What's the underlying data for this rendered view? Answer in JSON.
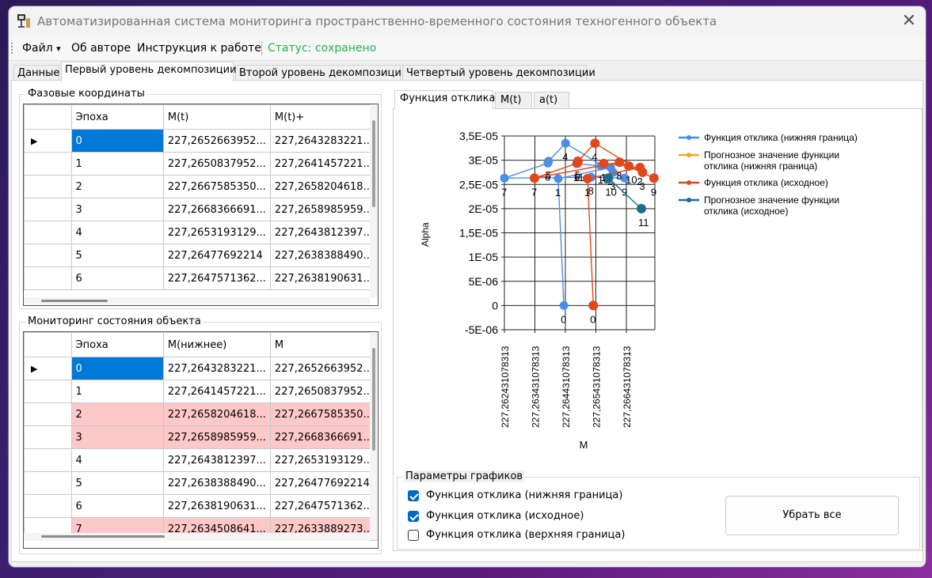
{
  "window": {
    "title": "Автоматизированная система мониторинга пространственно-временного состояния техногенного объекта",
    "close_glyph": "✕"
  },
  "menu": {
    "file": "Файл",
    "file_arrow": "▾",
    "about": "Об авторе",
    "instructions": "Инструкция к работе",
    "status": "Статус: сохранено",
    "status_color": "#22b14c"
  },
  "tabs": [
    "Данные",
    "Первый уровень декомпозиции",
    "Второй уровень декомпозиции",
    "Четвертый уровень декомпозиции"
  ],
  "active_tab": 1,
  "phase_coords": {
    "title": "Фазовые координаты",
    "columns": [
      "Эпоха",
      "M(t)",
      "M(t)+"
    ],
    "current_row_marker": "▶",
    "rows": [
      [
        "0",
        "227,2652663952...",
        "227,2643283221..."
      ],
      [
        "1",
        "227,2650837952...",
        "227,2641457221..."
      ],
      [
        "2",
        "227,2667585350...",
        "227,2658204618..."
      ],
      [
        "3",
        "227,2668366691...",
        "227,2658985959..."
      ],
      [
        "4",
        "227,2653193129...",
        "227,2643812397..."
      ],
      [
        "5",
        "227,26477692214",
        "227,2638388490..."
      ],
      [
        "6",
        "227,2647571362...",
        "227,2638190631..."
      ]
    ]
  },
  "monitoring": {
    "title": "Мониторинг состояния объекта",
    "columns": [
      "Эпоха",
      "M(нижнее)",
      "M"
    ],
    "current_row_marker": "▶",
    "alarm_color": "#ffc8c8",
    "rows": [
      {
        "cells": [
          "0",
          "227,2643283221...",
          "227,2652663952..."
        ],
        "alarm": false
      },
      {
        "cells": [
          "1",
          "227,2641457221...",
          "227,2650837952..."
        ],
        "alarm": false
      },
      {
        "cells": [
          "2",
          "227,2658204618...",
          "227,2667585350..."
        ],
        "alarm": true
      },
      {
        "cells": [
          "3",
          "227,2658985959...",
          "227,2668366691..."
        ],
        "alarm": true
      },
      {
        "cells": [
          "4",
          "227,2643812397...",
          "227,2653193129..."
        ],
        "alarm": false
      },
      {
        "cells": [
          "5",
          "227,2638388490...",
          "227,26477692214"
        ],
        "alarm": false
      },
      {
        "cells": [
          "6",
          "227,2638190631...",
          "227,2647571362..."
        ],
        "alarm": false
      },
      {
        "cells": [
          "7",
          "227,2634508641...",
          "227,2633889273..."
        ],
        "alarm": true
      }
    ]
  },
  "chart_tabs": [
    "Функция отклика",
    "M(t)",
    "a(t)"
  ],
  "active_chart_tab": 0,
  "chart_data": {
    "type": "scatter",
    "xlabel": "M",
    "ylabel": "Alpha",
    "x_ticks": [
      "227,262431078313",
      "227,263431078313",
      "227,264431078313",
      "227,265431078313",
      "227,266431078313"
    ],
    "x_range": [
      227.26243,
      227.26723
    ],
    "y_ticks": [
      "3,5E-05",
      "3E-05",
      "2,5E-05",
      "2E-05",
      "1,5E-05",
      "1E-05",
      "5E-06",
      "0",
      "-5E-06"
    ],
    "y_range": [
      -5e-06,
      3.5e-05
    ],
    "grid": true,
    "legend_position": "right",
    "series": [
      {
        "name": "Функция отклика (нижняя граница)",
        "color": "#4a8ee6",
        "points": [
          {
            "x": 227.2643283,
            "y": 0.0,
            "label": "0"
          },
          {
            "x": 227.2641457,
            "y": 2.62e-05,
            "label": "1"
          },
          {
            "x": 227.2658205,
            "y": 2.85e-05,
            "label": "2"
          },
          {
            "x": 227.2658986,
            "y": 2.75e-05,
            "label": "3"
          },
          {
            "x": 227.2643812,
            "y": 3.35e-05,
            "label": "4"
          },
          {
            "x": 227.2638388,
            "y": 2.98e-05,
            "label": "5"
          },
          {
            "x": 227.2638191,
            "y": 2.94e-05,
            "label": "6"
          },
          {
            "x": 227.26243,
            "y": 2.63e-05,
            "label": "7"
          },
          {
            "x": 227.2652,
            "y": 2.65e-05,
            "label": "8"
          },
          {
            "x": 227.26627,
            "y": 2.63e-05,
            "label": "9"
          },
          {
            "x": 227.26551,
            "y": 2.88e-05,
            "label": "10"
          },
          {
            "x": 227.26473,
            "y": 2.93e-05,
            "label": "11"
          }
        ]
      },
      {
        "name": "Прогнозное значение функции отклика (нижняя граница)",
        "color": "#f5a623",
        "points": []
      },
      {
        "name": "Функция отклика (исходное)",
        "color": "#e2471a",
        "points": [
          {
            "x": 227.2652664,
            "y": 0.0,
            "label": "0"
          },
          {
            "x": 227.2650838,
            "y": 2.62e-05,
            "label": "1"
          },
          {
            "x": 227.2667585,
            "y": 2.85e-05,
            "label": "2"
          },
          {
            "x": 227.2668367,
            "y": 2.75e-05,
            "label": "3"
          },
          {
            "x": 227.2653193,
            "y": 3.35e-05,
            "label": "4"
          },
          {
            "x": 227.2647769,
            "y": 2.98e-05,
            "label": "5"
          },
          {
            "x": 227.2647571,
            "y": 2.94e-05,
            "label": "6"
          },
          {
            "x": 227.263389,
            "y": 2.63e-05,
            "label": "7"
          },
          {
            "x": 227.2661,
            "y": 2.96e-05,
            "label": "8"
          },
          {
            "x": 227.2672,
            "y": 2.63e-05,
            "label": "9"
          },
          {
            "x": 227.2664,
            "y": 2.88e-05,
            "label": "10"
          },
          {
            "x": 227.2656,
            "y": 2.93e-05,
            "label": "11"
          }
        ]
      },
      {
        "name": "Прогнозное значение функции отклика (исходное)",
        "color": "#1a6e8e",
        "points": [
          {
            "x": 227.26575,
            "y": 2.63e-05,
            "label": "10"
          },
          {
            "x": 227.2668,
            "y": 2e-05,
            "label": "11"
          }
        ]
      }
    ]
  },
  "params": {
    "title": "Параметры графиков",
    "checkboxes": [
      {
        "label": "Функция отклика (нижняя граница)",
        "checked": true
      },
      {
        "label": "Функция отклика (исходное)",
        "checked": true
      },
      {
        "label": "Функция отклика (верхняя граница)",
        "checked": false
      }
    ],
    "clear_button": "Убрать все"
  }
}
